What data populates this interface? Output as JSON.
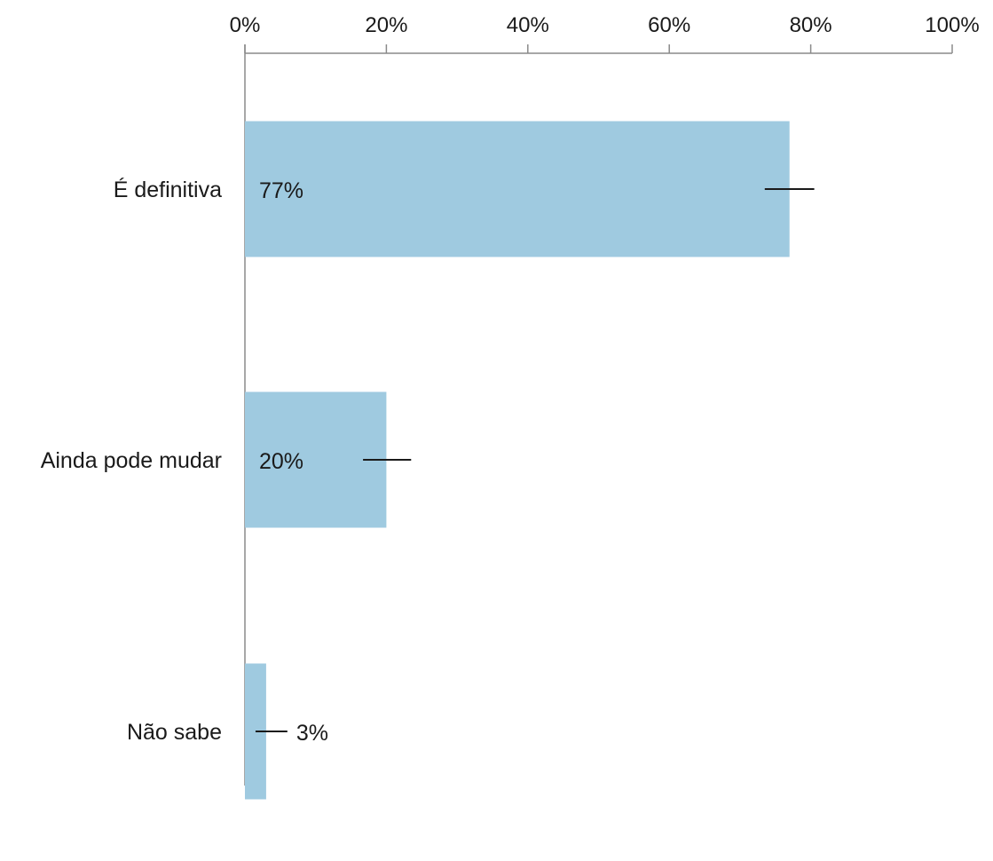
{
  "chart_data": {
    "type": "bar",
    "orientation": "horizontal",
    "categories": [
      "É definitiva",
      "Ainda pode mudar",
      "Não sabe"
    ],
    "values": [
      77,
      20,
      3
    ],
    "value_labels": [
      "77%",
      "20%",
      "3%"
    ],
    "error_margin_low": [
      73.5,
      16.7,
      1.5
    ],
    "error_margin_high": [
      80.5,
      23.5,
      6
    ],
    "xlim": [
      0,
      100
    ],
    "x_ticks": [
      0,
      20,
      40,
      60,
      80,
      100
    ],
    "x_tick_labels": [
      "0%",
      "20%",
      "40%",
      "60%",
      "80%",
      "100%"
    ],
    "x_axis_position": "top",
    "grid": false,
    "legend": "none",
    "bar_color": "#9fcae0",
    "axis_color": "#8a8a8a",
    "error_bar_color": "#1a1a1a"
  }
}
